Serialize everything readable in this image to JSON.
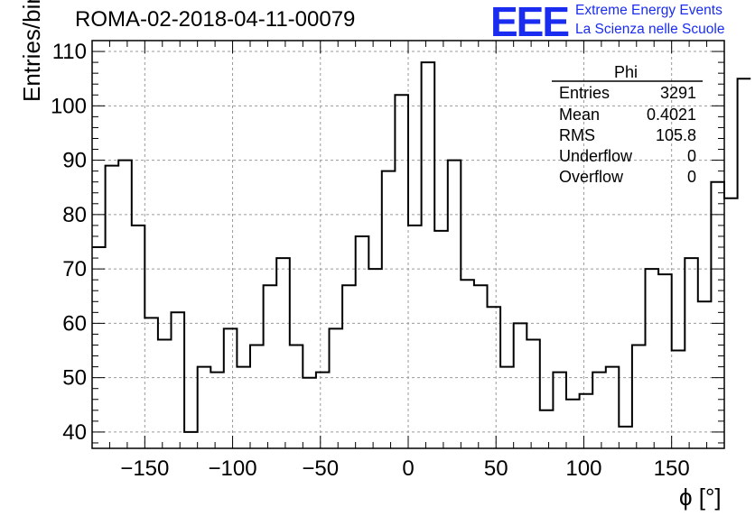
{
  "title": "ROMA-02-2018-04-11-00079",
  "logo": {
    "text": "EEE",
    "line1": "Extreme Energy Events",
    "line2": "La Scienza nelle Scuole",
    "color": "#1a2cf0"
  },
  "stats": {
    "title": "Phi",
    "rows": [
      {
        "name": "Entries",
        "value": "3291"
      },
      {
        "name": "Mean",
        "value": "0.4021"
      },
      {
        "name": "RMS",
        "value": "105.8"
      },
      {
        "name": "Underflow",
        "value": "0"
      },
      {
        "name": "Overflow",
        "value": "0"
      }
    ]
  },
  "chart_data": {
    "type": "histogram",
    "title": "ROMA-02-2018-04-11-00079",
    "xlabel": "ϕ [°]",
    "ylabel": "Entries/bin",
    "xlim": [
      -180,
      180
    ],
    "ylim": [
      37,
      112
    ],
    "xticks": [
      -150,
      -100,
      -50,
      0,
      50,
      100,
      150
    ],
    "yticks": [
      40,
      50,
      60,
      70,
      80,
      90,
      100,
      110
    ],
    "grid": true,
    "bin_width": 7.5,
    "bin_edges_start": -180,
    "values": [
      74,
      89,
      90,
      78,
      61,
      57,
      62,
      40,
      52,
      51,
      59,
      52,
      56,
      67,
      72,
      56,
      50,
      51,
      59,
      67,
      76,
      70,
      88,
      102,
      78,
      108,
      77,
      90,
      68,
      67,
      63,
      52,
      60,
      57,
      44,
      51,
      46,
      47,
      51,
      52,
      41,
      56,
      70,
      69,
      55,
      72,
      64,
      86,
      83,
      105
    ],
    "line_color": "#000000"
  }
}
